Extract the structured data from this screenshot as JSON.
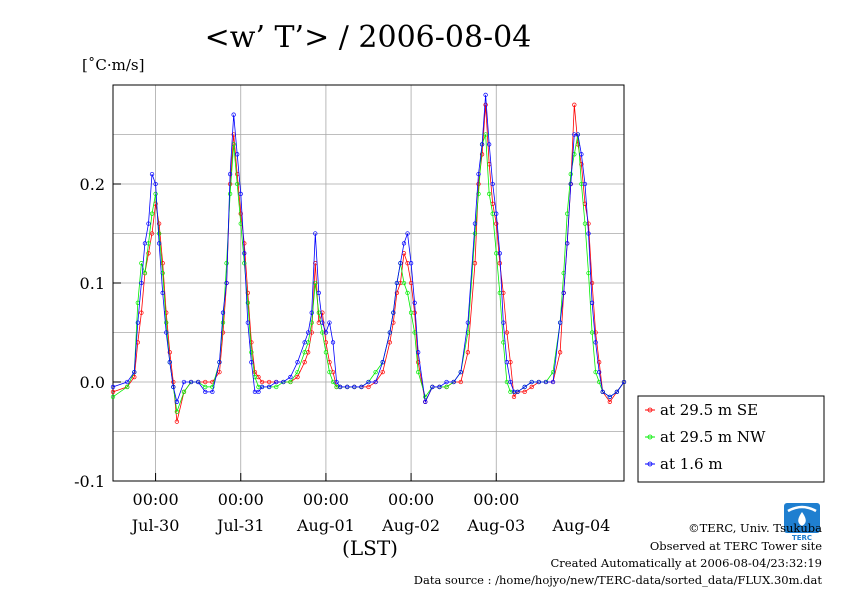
{
  "chart_data": {
    "type": "line",
    "title": "<w’ T’> / 2006-08-04",
    "ylabel": "[˚C·m/s]",
    "xlabel": "(LST)",
    "ylim": [
      -0.1,
      0.3
    ],
    "yticks": [
      -0.1,
      0.0,
      0.1,
      0.2
    ],
    "ytick_labels": [
      "-0.1",
      "0.0",
      "0.1",
      "0.2"
    ],
    "xlim_hours": [
      0,
      144
    ],
    "xtick_hours": [
      12,
      36,
      60,
      84,
      108
    ],
    "xtick_time_labels": [
      "00:00",
      "00:00",
      "00:00",
      "00:00",
      "00:00"
    ],
    "date_labels": [
      {
        "hour": 12,
        "label": "Jul-30"
      },
      {
        "hour": 36,
        "label": "Jul-31"
      },
      {
        "hour": 60,
        "label": "Aug-01"
      },
      {
        "hour": 84,
        "label": "Aug-02"
      },
      {
        "hour": 108,
        "label": "Aug-03"
      },
      {
        "hour": 132,
        "label": "Aug-04"
      }
    ],
    "grid": true,
    "legend_placement": "right",
    "series": [
      {
        "name": "at 29.5 m SE",
        "color": "#ff0000",
        "x": [
          0,
          4,
          6,
          7,
          8,
          9,
          10,
          11,
          12,
          13,
          14,
          15,
          16,
          17,
          18,
          20,
          22,
          24,
          26,
          28,
          30,
          31,
          32,
          33,
          34,
          35,
          36,
          37,
          38,
          39,
          40,
          41,
          42,
          44,
          46,
          48,
          50,
          52,
          54,
          55,
          56,
          57,
          58,
          59,
          60,
          61,
          62,
          63,
          64,
          66,
          68,
          70,
          72,
          74,
          76,
          78,
          79,
          80,
          81,
          82,
          83,
          84,
          85,
          86,
          88,
          90,
          92,
          94,
          96,
          98,
          100,
          102,
          103,
          104,
          105,
          106,
          107,
          108,
          109,
          110,
          111,
          112,
          113,
          114,
          116,
          118,
          120,
          122,
          124,
          126,
          127,
          128,
          129,
          130,
          131,
          132,
          133,
          134,
          135,
          136,
          137,
          138,
          140,
          142,
          144
        ],
        "y": [
          -0.01,
          -0.005,
          0.005,
          0.04,
          0.07,
          0.11,
          0.13,
          0.15,
          0.18,
          0.16,
          0.12,
          0.07,
          0.03,
          0.0,
          -0.04,
          -0.01,
          0.0,
          0.0,
          0.0,
          0.0,
          0.01,
          0.05,
          0.1,
          0.2,
          0.25,
          0.21,
          0.17,
          0.14,
          0.09,
          0.04,
          0.01,
          0.005,
          0.0,
          0.0,
          0.0,
          0.0,
          0.0,
          0.005,
          0.02,
          0.03,
          0.05,
          0.12,
          0.06,
          0.07,
          0.04,
          0.02,
          0.01,
          -0.005,
          -0.005,
          -0.005,
          -0.005,
          -0.005,
          -0.005,
          0.0,
          0.01,
          0.04,
          0.06,
          0.09,
          0.1,
          0.13,
          0.12,
          0.1,
          0.07,
          0.02,
          -0.02,
          -0.005,
          -0.005,
          -0.005,
          0.0,
          0.0,
          0.03,
          0.12,
          0.2,
          0.23,
          0.28,
          0.22,
          0.18,
          0.16,
          0.12,
          0.09,
          0.05,
          0.02,
          -0.015,
          -0.01,
          -0.01,
          -0.005,
          0.0,
          0.0,
          0.0,
          0.03,
          0.09,
          0.14,
          0.2,
          0.28,
          0.24,
          0.22,
          0.18,
          0.16,
          0.1,
          0.05,
          0.02,
          -0.01,
          -0.02,
          -0.01,
          0.0
        ]
      },
      {
        "name": "at 29.5 m NW",
        "color": "#00ee00",
        "x": [
          0,
          4,
          6,
          7,
          8,
          9,
          10,
          11,
          12,
          13,
          14,
          15,
          16,
          17,
          18,
          20,
          22,
          24,
          26,
          28,
          30,
          31,
          32,
          33,
          34,
          35,
          36,
          37,
          38,
          39,
          40,
          41,
          42,
          44,
          46,
          48,
          50,
          52,
          54,
          55,
          56,
          57,
          58,
          59,
          60,
          61,
          62,
          63,
          64,
          66,
          68,
          70,
          72,
          74,
          76,
          78,
          79,
          80,
          81,
          82,
          83,
          84,
          85,
          86,
          88,
          90,
          92,
          94,
          96,
          98,
          100,
          102,
          103,
          104,
          105,
          106,
          107,
          108,
          109,
          110,
          111,
          112,
          113,
          114,
          116,
          118,
          120,
          122,
          124,
          126,
          127,
          128,
          129,
          130,
          131,
          132,
          133,
          134,
          135,
          136,
          137,
          138,
          140,
          142,
          144
        ],
        "y": [
          -0.015,
          -0.005,
          0.01,
          0.08,
          0.12,
          0.11,
          0.14,
          0.17,
          0.19,
          0.15,
          0.11,
          0.06,
          0.02,
          -0.005,
          -0.03,
          -0.01,
          0.0,
          0.0,
          -0.005,
          -0.005,
          0.02,
          0.06,
          0.12,
          0.19,
          0.24,
          0.2,
          0.16,
          0.12,
          0.08,
          0.03,
          0.005,
          -0.005,
          -0.005,
          -0.005,
          -0.005,
          0.0,
          0.0,
          0.01,
          0.03,
          0.04,
          0.06,
          0.1,
          0.07,
          0.05,
          0.03,
          0.01,
          0.0,
          -0.005,
          -0.005,
          -0.005,
          -0.005,
          -0.005,
          0.0,
          0.01,
          0.02,
          0.05,
          0.07,
          0.1,
          0.12,
          0.1,
          0.09,
          0.07,
          0.05,
          0.01,
          -0.015,
          -0.005,
          -0.005,
          -0.005,
          0.0,
          0.01,
          0.05,
          0.15,
          0.19,
          0.24,
          0.25,
          0.19,
          0.17,
          0.13,
          0.09,
          0.04,
          0.0,
          -0.01,
          -0.01,
          -0.01,
          -0.005,
          0.0,
          0.0,
          0.0,
          0.01,
          0.06,
          0.11,
          0.17,
          0.21,
          0.23,
          0.25,
          0.2,
          0.16,
          0.11,
          0.05,
          0.01,
          0.0,
          -0.01,
          -0.015,
          -0.01,
          0.0
        ]
      },
      {
        "name": "at 1.6 m",
        "color": "#0000ff",
        "x": [
          0,
          4,
          6,
          7,
          8,
          9,
          10,
          11,
          12,
          13,
          14,
          15,
          16,
          17,
          18,
          20,
          22,
          24,
          26,
          28,
          30,
          31,
          32,
          33,
          34,
          35,
          36,
          37,
          38,
          39,
          40,
          41,
          42,
          44,
          46,
          48,
          50,
          52,
          54,
          55,
          56,
          57,
          58,
          59,
          60,
          61,
          62,
          63,
          64,
          66,
          68,
          70,
          72,
          74,
          76,
          78,
          79,
          80,
          81,
          82,
          83,
          84,
          85,
          86,
          88,
          90,
          92,
          94,
          96,
          98,
          100,
          102,
          103,
          104,
          105,
          106,
          107,
          108,
          109,
          110,
          111,
          112,
          113,
          114,
          116,
          118,
          120,
          122,
          124,
          126,
          127,
          128,
          129,
          130,
          131,
          132,
          133,
          134,
          135,
          136,
          137,
          138,
          140,
          142,
          144
        ],
        "y": [
          -0.005,
          0.0,
          0.01,
          0.06,
          0.1,
          0.14,
          0.16,
          0.21,
          0.2,
          0.14,
          0.09,
          0.05,
          0.02,
          -0.005,
          -0.02,
          0.0,
          0.0,
          0.0,
          -0.01,
          -0.01,
          0.02,
          0.07,
          0.1,
          0.21,
          0.27,
          0.23,
          0.19,
          0.13,
          0.06,
          0.02,
          -0.01,
          -0.01,
          -0.005,
          -0.005,
          0.0,
          0.0,
          0.005,
          0.02,
          0.04,
          0.05,
          0.07,
          0.15,
          0.09,
          0.06,
          0.05,
          0.06,
          0.04,
          0.0,
          -0.005,
          -0.005,
          -0.005,
          -0.005,
          0.0,
          0.0,
          0.02,
          0.05,
          0.07,
          0.1,
          0.12,
          0.14,
          0.15,
          0.12,
          0.08,
          0.03,
          -0.02,
          -0.005,
          -0.005,
          0.0,
          0.0,
          0.01,
          0.06,
          0.16,
          0.21,
          0.24,
          0.29,
          0.24,
          0.2,
          0.17,
          0.13,
          0.06,
          0.02,
          0.0,
          -0.01,
          -0.01,
          -0.005,
          0.0,
          0.0,
          0.0,
          0.0,
          0.06,
          0.09,
          0.14,
          0.2,
          0.25,
          0.25,
          0.23,
          0.2,
          0.15,
          0.08,
          0.04,
          0.01,
          -0.01,
          -0.015,
          -0.01,
          0.0
        ]
      }
    ]
  },
  "footer": {
    "copyright": "©TERC, Univ. Tsukuba",
    "observed": "Observed at TERC Tower site",
    "created": "Created Automatically at 2006-08-04/23:32:19",
    "source": "Data source : /home/hojyo/new/TERC-data/sorted_data/FLUX.30m.dat"
  },
  "logo": {
    "text": "TERC",
    "color": "#1f7fd0"
  }
}
